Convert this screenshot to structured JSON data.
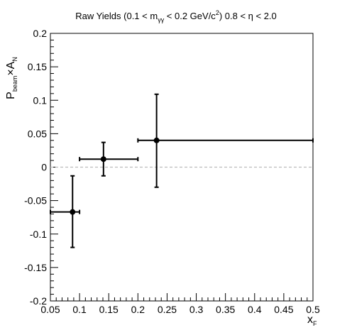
{
  "chart_data": {
    "type": "scatter",
    "title": {
      "p1": "Raw Yields (0.1 < m",
      "p1_sub": "γγ",
      "p2": " < 0.2 GeV/c",
      "p2_sup": "2",
      "p3": ") 0.8 < η < 2.0"
    },
    "xlabel": {
      "main": "x",
      "sub": "F"
    },
    "ylabel": {
      "p1": "P",
      "p1_sub": "beam",
      "p2": "×A",
      "p2_sub": "N"
    },
    "xlim": [
      0.05,
      0.5
    ],
    "ylim": [
      -0.2,
      0.2
    ],
    "x_ticks": [
      "0.05",
      "0.1",
      "0.15",
      "0.2",
      "0.25",
      "0.3",
      "0.35",
      "0.4",
      "0.45",
      "0.5"
    ],
    "y_ticks": [
      "-0.2",
      "-0.15",
      "-0.1",
      "-0.05",
      "0",
      "0.05",
      "0.1",
      "0.15",
      "0.2"
    ],
    "reference_line": {
      "y": 0,
      "style": "dashed",
      "color": "#bbbbbb"
    },
    "points": [
      {
        "x": 0.088,
        "y": -0.067,
        "x_low": 0.05,
        "x_high": 0.1,
        "y_low": -0.12,
        "y_high": -0.013
      },
      {
        "x": 0.141,
        "y": 0.012,
        "x_low": 0.1,
        "x_high": 0.2,
        "y_low": -0.013,
        "y_high": 0.037
      },
      {
        "x": 0.232,
        "y": 0.04,
        "x_low": 0.2,
        "x_high": 0.5,
        "y_low": -0.03,
        "y_high": 0.109
      }
    ],
    "colors": {
      "points": "#000000",
      "axes": "#000000"
    }
  }
}
